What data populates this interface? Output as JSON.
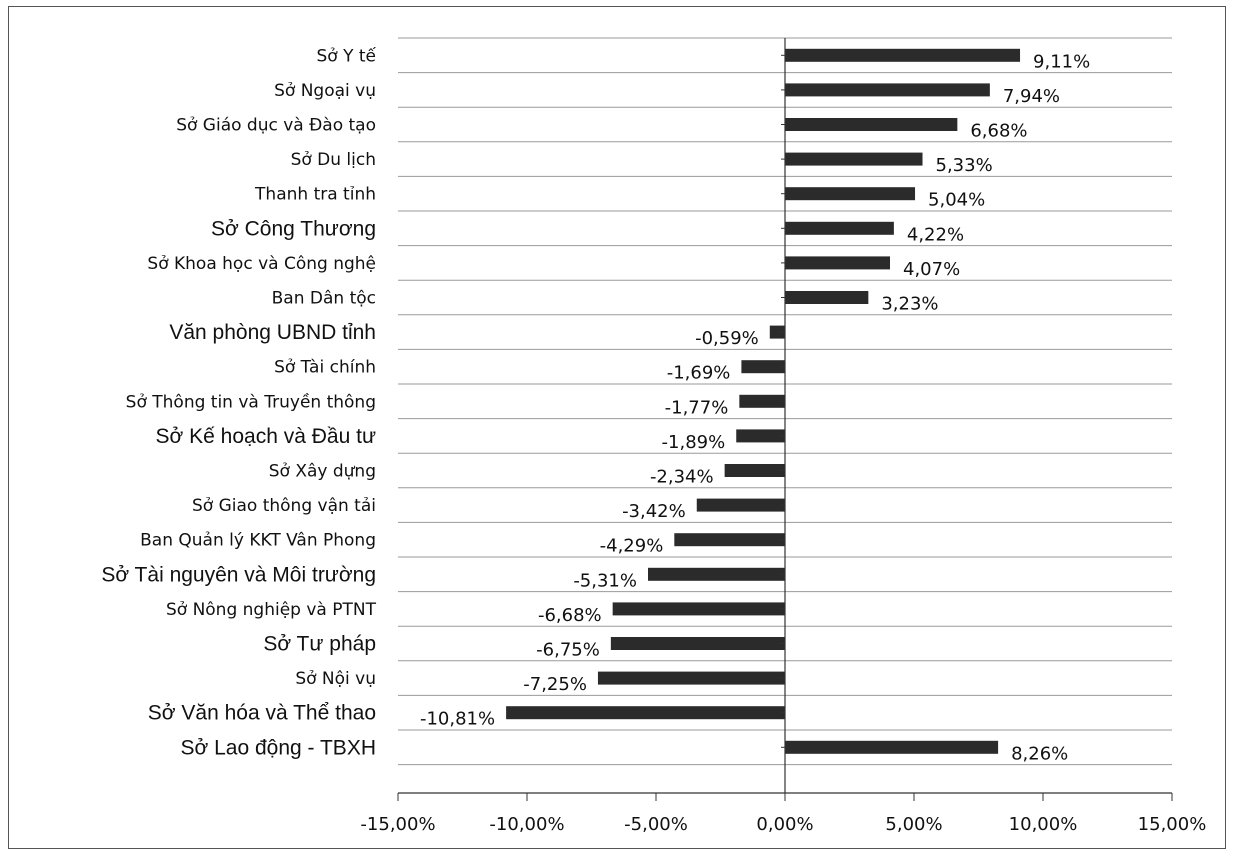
{
  "chart_data": {
    "type": "bar",
    "orientation": "horizontal",
    "categories": [
      "Sở Y tế",
      "Sở Ngoại vụ",
      "Sở Giáo dục và Đào tạo",
      "Sở Du lịch",
      "Thanh tra tỉnh",
      "Sở Công Thương",
      "Sở Khoa học và Công nghệ",
      "Ban Dân tộc",
      "Văn phòng UBND tỉnh",
      "Sở Tài chính",
      "Sở Thông tin và Truyền thông",
      "Sở Kế hoạch và Đầu tư",
      "Sở Xây dựng",
      "Sở Giao thông vận tải",
      "Ban Quản lý KKT Vân Phong",
      "Sở Tài nguyên và Môi trường",
      "Sở Nông nghiệp và PTNT",
      "Sở Tư pháp",
      "Sở Nội vụ",
      "Sở Văn hóa và Thể thao",
      "Sở Lao động - TBXH"
    ],
    "values": [
      9.11,
      7.94,
      6.68,
      5.33,
      5.04,
      4.22,
      4.07,
      3.23,
      -0.59,
      -1.69,
      -1.77,
      -1.89,
      -2.34,
      -3.42,
      -4.29,
      -5.31,
      -6.68,
      -6.75,
      -7.25,
      -10.81,
      8.26
    ],
    "value_labels": [
      "9,11%",
      "7,94%",
      "6,68%",
      "5,33%",
      "5,04%",
      "4,22%",
      "4,07%",
      "3,23%",
      "-0,59%",
      "-1,69%",
      "-1,77%",
      "-1,89%",
      "-2,34%",
      "-3,42%",
      "-4,29%",
      "-5,31%",
      "-6,68%",
      "-6,75%",
      "-7,25%",
      "-10,81%",
      "8,26%"
    ],
    "large_font_categories": [
      5,
      8,
      11,
      15,
      17,
      19,
      20
    ],
    "xlim": [
      -15,
      15
    ],
    "x_ticks": [
      -15,
      -10,
      -5,
      0,
      5,
      10,
      15
    ],
    "x_tick_labels": [
      "-15,00%",
      "-10,00%",
      "-5,00%",
      "0,00%",
      "5,00%",
      "10,00%",
      "15,00%"
    ],
    "grid": "horizontal",
    "bar_color": "#2b2b2b",
    "grid_color": "#9a9a9a",
    "axis_color": "#333333"
  }
}
